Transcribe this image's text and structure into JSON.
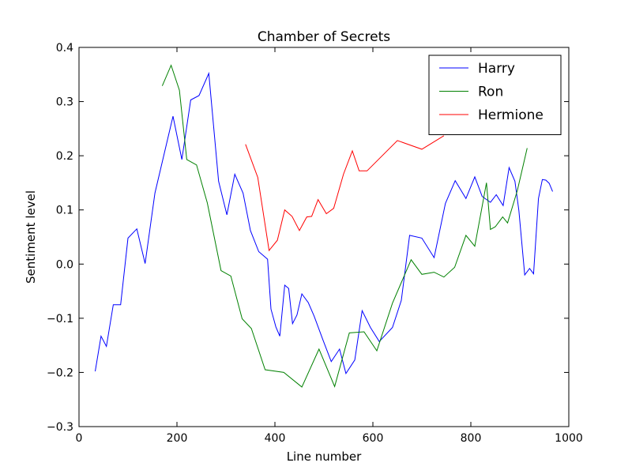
{
  "chart_data": {
    "type": "line",
    "title": "Chamber of Secrets",
    "xlabel": "Line number",
    "ylabel": "Sentiment level",
    "xlim": [
      0,
      1000
    ],
    "ylim": [
      -0.3,
      0.4
    ],
    "xticks": [
      0,
      200,
      400,
      600,
      800,
      1000
    ],
    "yticks": [
      -0.3,
      -0.2,
      -0.1,
      0.0,
      0.1,
      0.2,
      0.3,
      0.4
    ],
    "xtick_labels": [
      "0",
      "200",
      "400",
      "600",
      "800",
      "1000"
    ],
    "ytick_labels": [
      "−0.3",
      "−0.2",
      "−0.1",
      "0.0",
      "0.1",
      "0.2",
      "0.3",
      "0.4"
    ],
    "grid": false,
    "legend_position": "top-right",
    "series": [
      {
        "name": "Harry",
        "color": "#0000ff",
        "points": [
          [
            33,
            -0.198
          ],
          [
            45,
            -0.133
          ],
          [
            56,
            -0.152
          ],
          [
            70,
            -0.075
          ],
          [
            85,
            -0.075
          ],
          [
            100,
            0.048
          ],
          [
            118,
            0.065
          ],
          [
            135,
            0.001
          ],
          [
            155,
            0.131
          ],
          [
            192,
            0.273
          ],
          [
            210,
            0.193
          ],
          [
            228,
            0.303
          ],
          [
            245,
            0.311
          ],
          [
            265,
            0.352
          ],
          [
            285,
            0.153
          ],
          [
            302,
            0.091
          ],
          [
            318,
            0.166
          ],
          [
            335,
            0.131
          ],
          [
            350,
            0.062
          ],
          [
            367,
            0.023
          ],
          [
            385,
            0.009
          ],
          [
            392,
            -0.083
          ],
          [
            402,
            -0.116
          ],
          [
            410,
            -0.133
          ],
          [
            420,
            -0.039
          ],
          [
            428,
            -0.045
          ],
          [
            436,
            -0.11
          ],
          [
            445,
            -0.094
          ],
          [
            455,
            -0.055
          ],
          [
            468,
            -0.071
          ],
          [
            480,
            -0.096
          ],
          [
            498,
            -0.14
          ],
          [
            515,
            -0.18
          ],
          [
            532,
            -0.157
          ],
          [
            545,
            -0.202
          ],
          [
            563,
            -0.177
          ],
          [
            578,
            -0.086
          ],
          [
            595,
            -0.117
          ],
          [
            613,
            -0.143
          ],
          [
            640,
            -0.117
          ],
          [
            658,
            -0.067
          ],
          [
            675,
            0.053
          ],
          [
            700,
            0.048
          ],
          [
            725,
            0.012
          ],
          [
            748,
            0.112
          ],
          [
            768,
            0.154
          ],
          [
            790,
            0.121
          ],
          [
            808,
            0.161
          ],
          [
            823,
            0.125
          ],
          [
            840,
            0.114
          ],
          [
            852,
            0.128
          ],
          [
            866,
            0.108
          ],
          [
            878,
            0.178
          ],
          [
            890,
            0.153
          ],
          [
            898,
            0.099
          ],
          [
            910,
            -0.02
          ],
          [
            920,
            -0.008
          ],
          [
            928,
            -0.018
          ],
          [
            938,
            0.121
          ],
          [
            946,
            0.156
          ],
          [
            953,
            0.155
          ],
          [
            960,
            0.149
          ],
          [
            967,
            0.134
          ]
        ]
      },
      {
        "name": "Ron",
        "color": "#008000",
        "points": [
          [
            170,
            0.329
          ],
          [
            188,
            0.367
          ],
          [
            205,
            0.321
          ],
          [
            220,
            0.193
          ],
          [
            240,
            0.183
          ],
          [
            262,
            0.113
          ],
          [
            290,
            -0.012
          ],
          [
            310,
            -0.022
          ],
          [
            333,
            -0.101
          ],
          [
            352,
            -0.119
          ],
          [
            380,
            -0.195
          ],
          [
            418,
            -0.2
          ],
          [
            455,
            -0.227
          ],
          [
            490,
            -0.157
          ],
          [
            522,
            -0.226
          ],
          [
            552,
            -0.127
          ],
          [
            582,
            -0.125
          ],
          [
            608,
            -0.16
          ],
          [
            640,
            -0.072
          ],
          [
            678,
            0.008
          ],
          [
            700,
            -0.019
          ],
          [
            725,
            -0.015
          ],
          [
            745,
            -0.024
          ],
          [
            767,
            -0.006
          ],
          [
            790,
            0.053
          ],
          [
            808,
            0.033
          ],
          [
            832,
            0.15
          ],
          [
            840,
            0.064
          ],
          [
            850,
            0.069
          ],
          [
            865,
            0.087
          ],
          [
            875,
            0.076
          ],
          [
            895,
            0.136
          ],
          [
            915,
            0.214
          ]
        ]
      },
      {
        "name": "Hermione",
        "color": "#ff0000",
        "points": [
          [
            340,
            0.221
          ],
          [
            365,
            0.16
          ],
          [
            388,
            0.025
          ],
          [
            405,
            0.044
          ],
          [
            420,
            0.1
          ],
          [
            435,
            0.088
          ],
          [
            450,
            0.062
          ],
          [
            465,
            0.087
          ],
          [
            475,
            0.088
          ],
          [
            488,
            0.119
          ],
          [
            505,
            0.093
          ],
          [
            520,
            0.103
          ],
          [
            540,
            0.166
          ],
          [
            558,
            0.209
          ],
          [
            572,
            0.172
          ],
          [
            588,
            0.172
          ],
          [
            650,
            0.228
          ],
          [
            700,
            0.212
          ],
          [
            745,
            0.237
          ]
        ]
      }
    ]
  }
}
